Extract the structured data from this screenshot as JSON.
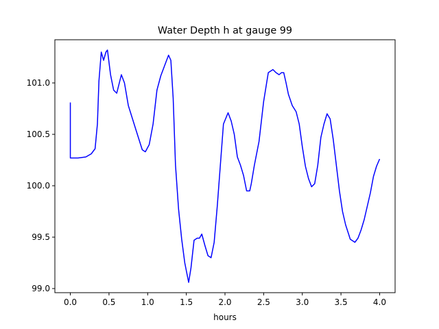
{
  "chart_data": {
    "type": "line",
    "title": "Water Depth h at gauge 99",
    "xlabel": "hours",
    "ylabel": "",
    "xlim": [
      -0.2,
      4.2
    ],
    "ylim": [
      98.96,
      101.42
    ],
    "xticks": [
      0.0,
      0.5,
      1.0,
      1.5,
      2.0,
      2.5,
      3.0,
      3.5,
      4.0
    ],
    "xtick_labels": [
      "0.0",
      "0.5",
      "1.0",
      "1.5",
      "2.0",
      "2.5",
      "3.0",
      "3.5",
      "4.0"
    ],
    "yticks": [
      99.0,
      99.5,
      100.0,
      100.5,
      101.0
    ],
    "ytick_labels": [
      "99.0",
      "99.5",
      "100.0",
      "100.5",
      "101.0"
    ],
    "grid": false,
    "series": [
      {
        "color": "#0000ff",
        "x": [
          0.0,
          0.0,
          0.1,
          0.2,
          0.27,
          0.32,
          0.35,
          0.37,
          0.4,
          0.43,
          0.46,
          0.48,
          0.52,
          0.56,
          0.6,
          0.63,
          0.66,
          0.7,
          0.75,
          0.85,
          0.93,
          0.97,
          1.02,
          1.07,
          1.12,
          1.17,
          1.22,
          1.27,
          1.3,
          1.33,
          1.36,
          1.4,
          1.44,
          1.48,
          1.53,
          1.56,
          1.6,
          1.64,
          1.67,
          1.7,
          1.74,
          1.78,
          1.82,
          1.86,
          1.9,
          1.94,
          1.98,
          2.04,
          2.08,
          2.12,
          2.16,
          2.2,
          2.24,
          2.28,
          2.32,
          2.34,
          2.38,
          2.44,
          2.5,
          2.56,
          2.62,
          2.66,
          2.7,
          2.73,
          2.76,
          2.79,
          2.82,
          2.87,
          2.92,
          2.96,
          3.0,
          3.04,
          3.08,
          3.12,
          3.16,
          3.2,
          3.24,
          3.28,
          3.32,
          3.36,
          3.4,
          3.44,
          3.48,
          3.52,
          3.56,
          3.62,
          3.68,
          3.72,
          3.76,
          3.8,
          3.84,
          3.88,
          3.92,
          3.96,
          4.0
        ],
        "y": [
          100.81,
          100.27,
          100.27,
          100.28,
          100.31,
          100.36,
          100.6,
          101.02,
          101.3,
          101.22,
          101.3,
          101.32,
          101.08,
          100.93,
          100.9,
          100.99,
          101.08,
          101.0,
          100.78,
          100.54,
          100.35,
          100.33,
          100.4,
          100.6,
          100.93,
          101.07,
          101.17,
          101.27,
          101.22,
          100.85,
          100.2,
          99.77,
          99.48,
          99.25,
          99.06,
          99.2,
          99.47,
          99.49,
          99.49,
          99.53,
          99.42,
          99.32,
          99.3,
          99.45,
          99.8,
          100.2,
          100.6,
          100.71,
          100.63,
          100.5,
          100.28,
          100.2,
          100.1,
          99.95,
          99.95,
          100.02,
          100.2,
          100.43,
          100.82,
          101.1,
          101.13,
          101.1,
          101.08,
          101.1,
          101.1,
          101.0,
          100.89,
          100.78,
          100.72,
          100.6,
          100.38,
          100.19,
          100.07,
          99.99,
          100.02,
          100.2,
          100.47,
          100.6,
          100.7,
          100.65,
          100.45,
          100.2,
          99.95,
          99.75,
          99.62,
          99.48,
          99.45,
          99.49,
          99.57,
          99.67,
          99.8,
          99.93,
          100.09,
          100.19,
          100.26
        ]
      }
    ]
  }
}
